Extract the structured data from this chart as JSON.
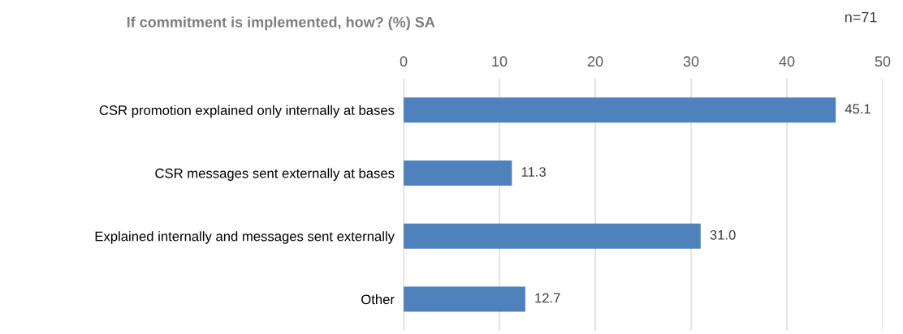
{
  "chart_data": {
    "type": "bar",
    "orientation": "horizontal",
    "title": "If commitment is implemented, how? (%) SA",
    "annotations": [
      "n=71"
    ],
    "categories": [
      "CSR promotion explained only internally at bases",
      "CSR messages sent externally at bases",
      "Explained internally and messages sent externally",
      "Other"
    ],
    "values": [
      45.1,
      11.3,
      31.0,
      12.7
    ],
    "value_labels": [
      "45.1",
      "11.3",
      "31.0",
      "12.7"
    ],
    "color": "#4f81bd",
    "xlim": [
      0,
      50
    ],
    "xticks": [
      0,
      10,
      20,
      30,
      40,
      50
    ],
    "grid": "x",
    "legend": false
  }
}
